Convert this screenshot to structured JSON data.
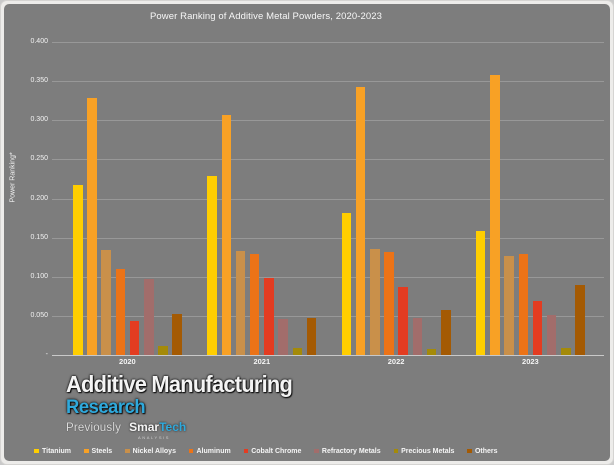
{
  "chart_data": {
    "type": "bar",
    "title": "Power Ranking of Additive Metal Powders, 2020-2023",
    "xlabel": "",
    "ylabel": "Power Ranking*",
    "ylim": [
      0,
      0.4
    ],
    "grid": true,
    "legend_position": "bottom",
    "background_color": "#7d7d7d",
    "y_ticks": [
      "0.400",
      "0.350",
      "0.300",
      "0.250",
      "0.200",
      "0.150",
      "0.100",
      "0.050",
      "-"
    ],
    "categories": [
      "2020",
      "2021",
      "2022",
      "2023"
    ],
    "series": [
      {
        "name": "Titanium",
        "color": "#FFCE00",
        "values": [
          0.217,
          0.229,
          0.182,
          0.159
        ]
      },
      {
        "name": "Steels",
        "color": "#F8A125",
        "values": [
          0.328,
          0.307,
          0.343,
          0.358
        ]
      },
      {
        "name": "Nickel Alloys",
        "color": "#C9904A",
        "values": [
          0.134,
          0.133,
          0.136,
          0.126
        ]
      },
      {
        "name": "Aluminum",
        "color": "#EC7317",
        "values": [
          0.11,
          0.129,
          0.132,
          0.129
        ]
      },
      {
        "name": "Cobalt Chrome",
        "color": "#E33C21",
        "values": [
          0.044,
          0.098,
          0.087,
          0.069
        ]
      },
      {
        "name": "Refractory Metals",
        "color": "#A26D6B",
        "values": [
          0.097,
          0.046,
          0.047,
          0.051
        ]
      },
      {
        "name": "Precious Metals",
        "color": "#A48A09",
        "values": [
          0.012,
          0.009,
          0.008,
          0.009
        ]
      },
      {
        "name": "Others",
        "color": "#A45A03",
        "values": [
          0.053,
          0.047,
          0.058,
          0.089
        ]
      }
    ]
  },
  "logo": {
    "line1": "Additive Manufacturing",
    "line2": "Research",
    "line2_color": "#2FA9DC",
    "previously": "Previously",
    "brand_a": "Smar",
    "brand_b": "Tech",
    "brand_b_color": "#2FA9DC",
    "sub": "ANALYSIS"
  }
}
